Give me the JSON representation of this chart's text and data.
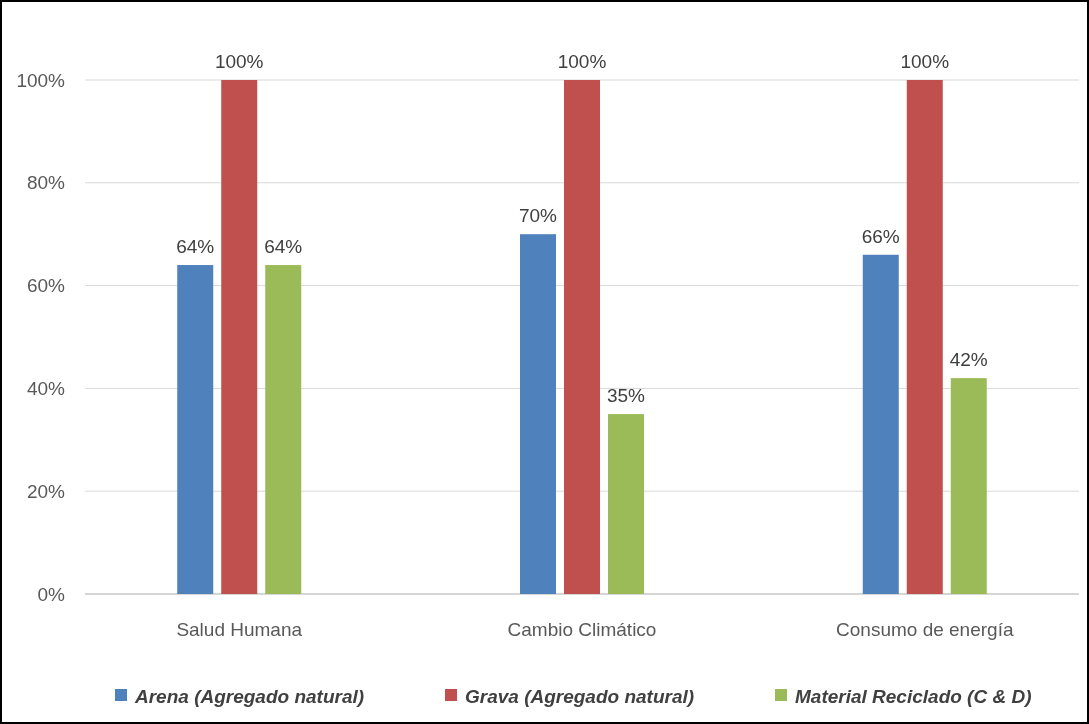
{
  "chart_data": {
    "type": "bar",
    "categories": [
      "Salud Humana",
      "Cambio Climático",
      "Consumo de energía"
    ],
    "series": [
      {
        "name": "Arena (Agregado natural)",
        "color": "#4f81bd",
        "values": [
          64,
          70,
          66
        ]
      },
      {
        "name": "Grava (Agregado natural)",
        "color": "#c0504d",
        "values": [
          100,
          100,
          100
        ]
      },
      {
        "name": "Material Reciclado (C & D)",
        "color": "#9bbb59",
        "values": [
          64,
          35,
          42
        ]
      }
    ],
    "ylim": [
      0,
      100
    ],
    "yticks": [
      {
        "value": 0,
        "label": "0%"
      },
      {
        "value": 20,
        "label": "20%"
      },
      {
        "value": 40,
        "label": "40%"
      },
      {
        "value": 60,
        "label": "60%"
      },
      {
        "value": 80,
        "label": "80%"
      },
      {
        "value": 100,
        "label": "100%"
      }
    ],
    "value_labels": [
      [
        "64%",
        "70%",
        "66%"
      ],
      [
        "100%",
        "100%",
        "100%"
      ],
      [
        "64%",
        "35%",
        "42%"
      ]
    ],
    "grid": "y",
    "legend": "bottom"
  }
}
